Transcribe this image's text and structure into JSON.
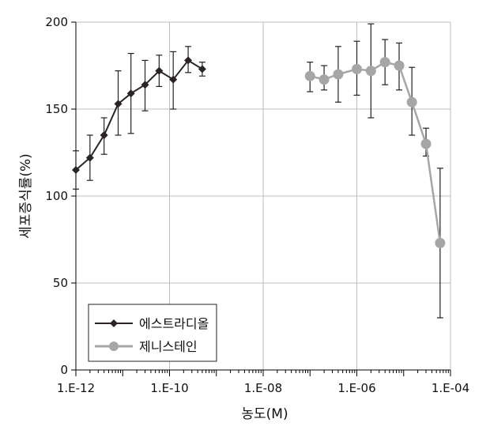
{
  "chart_data": {
    "type": "line",
    "xscale": "log",
    "xlim": [
      "1.E-12",
      "1.E-04"
    ],
    "ylim": [
      0,
      200
    ],
    "xlabel": "농도(M)",
    "ylabel": "세포증식률(%)",
    "x_tick_labels": [
      "1.E-12",
      "1.E-10",
      "1.E-08",
      "1.E-06",
      "1.E-04"
    ],
    "y_tick_labels": [
      "0",
      "50",
      "100",
      "150",
      "200"
    ],
    "grid": true,
    "legend_position": "bottom-left",
    "series": [
      {
        "name": "에스트라디올",
        "color": "#2b2424",
        "marker": "diamond",
        "points": [
          {
            "x": "1E-12",
            "y": 115,
            "err_low": 104,
            "err_high": 126
          },
          {
            "x": "2E-12",
            "y": 122,
            "err_low": 109,
            "err_high": 135
          },
          {
            "x": "4E-12",
            "y": 135,
            "err_low": 124,
            "err_high": 145
          },
          {
            "x": "8E-12",
            "y": 153,
            "err_low": 135,
            "err_high": 172
          },
          {
            "x": "1.5E-11",
            "y": 159,
            "err_low": 136,
            "err_high": 182
          },
          {
            "x": "3E-11",
            "y": 164,
            "err_low": 149,
            "err_high": 178
          },
          {
            "x": "6E-11",
            "y": 172,
            "err_low": 163,
            "err_high": 181
          },
          {
            "x": "1.2E-10",
            "y": 167,
            "err_low": 150,
            "err_high": 183
          },
          {
            "x": "2.5E-10",
            "y": 178,
            "err_low": 171,
            "err_high": 186
          },
          {
            "x": "5E-10",
            "y": 173,
            "err_low": 169,
            "err_high": 177
          }
        ]
      },
      {
        "name": "제니스테인",
        "color": "#a6a6a6",
        "marker": "circle",
        "points": [
          {
            "x": "1E-07",
            "y": 169,
            "err_low": 160,
            "err_high": 177
          },
          {
            "x": "2E-07",
            "y": 167,
            "err_low": 161,
            "err_high": 175
          },
          {
            "x": "4E-07",
            "y": 170,
            "err_low": 154,
            "err_high": 186
          },
          {
            "x": "1E-06",
            "y": 173,
            "err_low": 158,
            "err_high": 189
          },
          {
            "x": "2E-06",
            "y": 172,
            "err_low": 145,
            "err_high": 199
          },
          {
            "x": "4E-06",
            "y": 177,
            "err_low": 164,
            "err_high": 190
          },
          {
            "x": "8E-06",
            "y": 175,
            "err_low": 161,
            "err_high": 188
          },
          {
            "x": "1.5E-05",
            "y": 154,
            "err_low": 135,
            "err_high": 174
          },
          {
            "x": "3E-05",
            "y": 130,
            "err_low": 123,
            "err_high": 139
          },
          {
            "x": "6E-05",
            "y": 73,
            "err_low": 30,
            "err_high": 116
          }
        ]
      }
    ]
  }
}
